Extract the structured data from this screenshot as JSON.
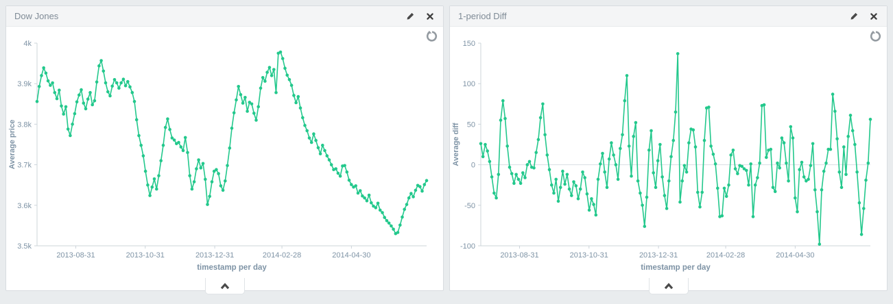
{
  "page": {
    "background": "#e9ecee",
    "accent_green": "#23c88c",
    "axis_text_color": "#7e93a5"
  },
  "panels": [
    {
      "title": "Dow Jones",
      "icons": {
        "edit": "pencil-icon",
        "close": "close-icon",
        "reset": "circular-arrow-icon",
        "collapse": "chevron-up-icon"
      }
    },
    {
      "title": "1-period Diff",
      "icons": {
        "edit": "pencil-icon",
        "close": "close-icon",
        "reset": "circular-arrow-icon",
        "collapse": "chevron-up-icon"
      }
    }
  ],
  "chart_data": [
    {
      "type": "line",
      "title": "Dow Jones",
      "xlabel": "timestamp per day",
      "ylabel": "Average price",
      "x_start": "2013-07-28",
      "x_end": "2014-07-05",
      "x_ticks": [
        "2013-08-31",
        "2013-10-31",
        "2013-12-31",
        "2014-02-28",
        "2014-04-30"
      ],
      "y_ticks": [
        {
          "v": 4000,
          "label": "4k"
        },
        {
          "v": 3900,
          "label": "3.9k"
        },
        {
          "v": 3800,
          "label": "3.8k"
        },
        {
          "v": 3700,
          "label": "3.7k"
        },
        {
          "v": 3600,
          "label": "3.6k"
        },
        {
          "v": 3500,
          "label": "3.5k"
        }
      ],
      "ylim": [
        3500,
        4000
      ],
      "zero_line": false,
      "grid": false,
      "legend": "none",
      "line_color": "#23c88c",
      "values": [
        3856,
        3893,
        3920,
        3939,
        3926,
        3907,
        3896,
        3902,
        3878,
        3863,
        3884,
        3845,
        3825,
        3843,
        3788,
        3772,
        3800,
        3826,
        3855,
        3872,
        3885,
        3852,
        3838,
        3862,
        3878,
        3848,
        3858,
        3904,
        3944,
        3957,
        3931,
        3902,
        3880,
        3870,
        3894,
        3910,
        3902,
        3889,
        3902,
        3911,
        3895,
        3905,
        3892,
        3878,
        3856,
        3811,
        3772,
        3748,
        3722,
        3684,
        3650,
        3624,
        3645,
        3665,
        3640,
        3673,
        3710,
        3748,
        3792,
        3813,
        3787,
        3766,
        3761,
        3752,
        3755,
        3744,
        3735,
        3767,
        3730,
        3673,
        3640,
        3658,
        3690,
        3712,
        3692,
        3703,
        3664,
        3602,
        3622,
        3658,
        3684,
        3688,
        3678,
        3648,
        3637,
        3660,
        3698,
        3741,
        3790,
        3828,
        3860,
        3893,
        3873,
        3852,
        3866,
        3832,
        3854,
        3850,
        3827,
        3810,
        3843,
        3889,
        3915,
        3906,
        3928,
        3940,
        3920,
        3935,
        3878,
        3975,
        3978,
        3962,
        3938,
        3921,
        3910,
        3896,
        3871,
        3853,
        3868,
        3840,
        3816,
        3797,
        3784,
        3766,
        3755,
        3776,
        3760,
        3742,
        3727,
        3748,
        3735,
        3722,
        3712,
        3700,
        3688,
        3690,
        3679,
        3672,
        3697,
        3698,
        3682,
        3662,
        3651,
        3645,
        3648,
        3630,
        3636,
        3623,
        3618,
        3611,
        3625,
        3606,
        3598,
        3594,
        3605,
        3588,
        3582,
        3570,
        3562,
        3556,
        3549,
        3541,
        3530,
        3533,
        3551,
        3571,
        3590,
        3602,
        3618,
        3629,
        3621,
        3637,
        3649,
        3646,
        3635,
        3651,
        3661
      ]
    },
    {
      "type": "line",
      "title": "1-period Diff",
      "xlabel": "timestamp per day",
      "ylabel": "Average diff",
      "x_start": "2013-07-28",
      "x_end": "2014-07-05",
      "x_ticks": [
        "2013-08-31",
        "2013-10-31",
        "2013-12-31",
        "2014-02-28",
        "2014-04-30"
      ],
      "y_ticks": [
        {
          "v": 150,
          "label": "150"
        },
        {
          "v": 100,
          "label": "100"
        },
        {
          "v": 50,
          "label": "50"
        },
        {
          "v": 0,
          "label": "0"
        },
        {
          "v": -50,
          "label": "-50"
        },
        {
          "v": -100,
          "label": "-100"
        }
      ],
      "ylim": [
        -100,
        150
      ],
      "zero_line": true,
      "grid": false,
      "legend": "none",
      "line_color": "#23c88c",
      "values": [
        26,
        10,
        25,
        17,
        4,
        -15,
        -35,
        -41,
        -12,
        55,
        79,
        57,
        23,
        -3,
        -11,
        -23,
        -12,
        -18,
        -23,
        -10,
        -16,
        0,
        4,
        -3,
        -4,
        15,
        31,
        58,
        75,
        37,
        12,
        -6,
        -25,
        -35,
        -18,
        -45,
        -28,
        -8,
        -24,
        -12,
        -30,
        -38,
        -21,
        -26,
        -42,
        -30,
        -9,
        -16,
        -36,
        -56,
        -42,
        -49,
        -62,
        -18,
        1,
        14,
        -9,
        -28,
        7,
        27,
        12,
        0,
        -18,
        20,
        37,
        79,
        110,
        23,
        -14,
        35,
        52,
        -20,
        -35,
        -50,
        -76,
        -40,
        18,
        42,
        -10,
        -28,
        5,
        25,
        -15,
        -38,
        -54,
        -20,
        10,
        30,
        65,
        137,
        -46,
        -20,
        -1,
        -9,
        27,
        44,
        43,
        22,
        -34,
        -52,
        -34,
        30,
        70,
        71,
        23,
        13,
        1,
        -29,
        -64,
        -63,
        -29,
        -39,
        -25,
        12,
        18,
        -5,
        -11,
        -1,
        -2,
        -5,
        -7,
        -25,
        1,
        -64,
        -25,
        -16,
        2,
        73,
        74,
        9,
        18,
        19,
        -28,
        -33,
        2,
        -4,
        33,
        27,
        2,
        -20,
        47,
        33,
        -41,
        -58,
        -6,
        3,
        -15,
        -20,
        -18,
        -1,
        26,
        -31,
        -58,
        -98,
        -31,
        -8,
        2,
        19,
        19,
        87,
        66,
        32,
        -9,
        -28,
        22,
        -12,
        35,
        61,
        42,
        25,
        -9,
        -47,
        -86,
        -54,
        -19,
        2,
        56
      ]
    }
  ]
}
